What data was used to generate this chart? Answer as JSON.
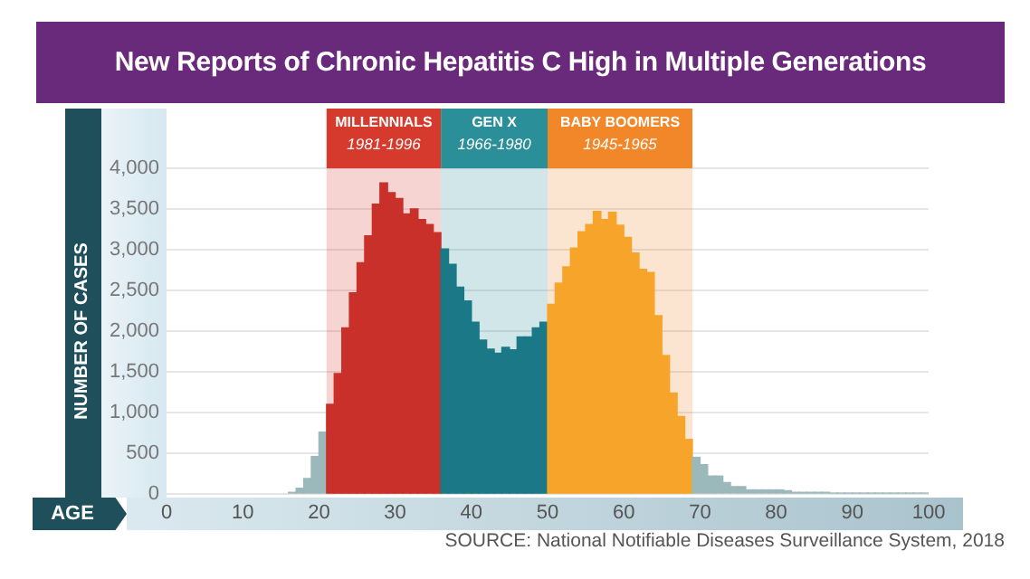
{
  "chart_data": {
    "type": "histogram",
    "title": "New Reports of Chronic Hepatitis C High in Multiple Generations",
    "xlabel": "AGE",
    "ylabel": "NUMBER OF CASES",
    "bins": [
      16,
      17,
      18,
      19,
      20,
      21,
      22,
      23,
      24,
      25,
      26,
      27,
      28,
      29,
      30,
      31,
      32,
      33,
      34,
      35,
      36,
      37,
      38,
      39,
      40,
      41,
      42,
      43,
      44,
      45,
      46,
      47,
      48,
      49,
      50,
      51,
      52,
      53,
      54,
      55,
      56,
      57,
      58,
      59,
      60,
      61,
      62,
      63,
      64,
      65,
      66,
      67,
      68,
      69,
      70,
      71,
      72,
      73,
      74,
      75,
      76,
      77,
      78,
      79,
      80,
      81,
      82,
      83,
      84,
      85,
      86,
      87,
      88,
      89,
      90,
      91,
      92,
      93,
      94,
      95,
      96,
      97,
      98,
      99,
      100
    ],
    "values": [
      20,
      70,
      190,
      460,
      760,
      1100,
      1480,
      2040,
      2470,
      2840,
      3170,
      3560,
      3820,
      3700,
      3630,
      3440,
      3500,
      3370,
      3310,
      3210,
      3010,
      2820,
      2540,
      2370,
      2110,
      1890,
      1780,
      1730,
      1800,
      1770,
      1930,
      1930,
      2040,
      2110,
      2330,
      2590,
      2790,
      3020,
      3220,
      3310,
      3470,
      3370,
      3460,
      3300,
      3150,
      2960,
      2760,
      2720,
      2190,
      1700,
      1240,
      950,
      670,
      450,
      360,
      220,
      220,
      140,
      90,
      90,
      50,
      50,
      50,
      50,
      50,
      40,
      20,
      20,
      20,
      20,
      20,
      10,
      10,
      10,
      10,
      10,
      10,
      10,
      10,
      10,
      10,
      10,
      10,
      10
    ],
    "colors": [
      "#9bb8ba",
      "#9bb8ba",
      "#9bb8ba",
      "#9bb8ba",
      "#9bb8ba",
      "#c9302a",
      "#c9302a",
      "#c9302a",
      "#c9302a",
      "#c9302a",
      "#c9302a",
      "#c9302a",
      "#c9302a",
      "#c9302a",
      "#c9302a",
      "#c9302a",
      "#c9302a",
      "#c9302a",
      "#c9302a",
      "#c9302a",
      "#1b7886",
      "#1b7886",
      "#1b7886",
      "#1b7886",
      "#1b7886",
      "#1b7886",
      "#1b7886",
      "#1b7886",
      "#1b7886",
      "#1b7886",
      "#1b7886",
      "#1b7886",
      "#1b7886",
      "#1b7886",
      "#f7a52a",
      "#f7a52a",
      "#f7a52a",
      "#f7a52a",
      "#f7a52a",
      "#f7a52a",
      "#f7a52a",
      "#f7a52a",
      "#f7a52a",
      "#f7a52a",
      "#f7a52a",
      "#f7a52a",
      "#f7a52a",
      "#f7a52a",
      "#f7a52a",
      "#f7a52a",
      "#f7a52a",
      "#f7a52a",
      "#f7a52a",
      "#9bb8ba",
      "#9bb8ba",
      "#9bb8ba",
      "#9bb8ba",
      "#9bb8ba",
      "#9bb8ba",
      "#9bb8ba",
      "#9bb8ba",
      "#9bb8ba",
      "#9bb8ba",
      "#9bb8ba",
      "#9bb8ba",
      "#9bb8ba",
      "#9bb8ba",
      "#9bb8ba",
      "#9bb8ba",
      "#9bb8ba",
      "#9bb8ba",
      "#9bb8ba",
      "#9bb8ba",
      "#9bb8ba",
      "#9bb8ba",
      "#9bb8ba",
      "#9bb8ba",
      "#9bb8ba",
      "#9bb8ba",
      "#9bb8ba",
      "#9bb8ba",
      "#9bb8ba",
      "#9bb8ba",
      "#9bb8ba"
    ],
    "bands": [
      {
        "axis": "x",
        "from": 21,
        "to": 36,
        "label": "MILLENNIALS\n1981-1996",
        "color": "#d63a2c"
      },
      {
        "axis": "x",
        "from": 36,
        "to": 50,
        "label": "GEN X\n1966-1980",
        "color": "#2a8f98"
      },
      {
        "axis": "x",
        "from": 50,
        "to": 69,
        "label": "BABY BOOMERS\n1945-1965",
        "color": "#f2872a"
      }
    ],
    "xlim": [
      0,
      100
    ],
    "xticks": [
      0,
      10,
      20,
      30,
      40,
      50,
      60,
      70,
      80,
      90,
      100
    ],
    "ylim": [
      0,
      4000
    ],
    "yticks": [
      0,
      500,
      {
        "value": 1000,
        "label": "1,000"
      },
      {
        "value": 1500,
        "label": "1,500"
      },
      {
        "value": 2000,
        "label": "2,000"
      },
      {
        "value": 2500,
        "label": "2,500"
      },
      {
        "value": 3000,
        "label": "3,000"
      },
      {
        "value": 3500,
        "label": "3,500"
      },
      {
        "value": 4000,
        "label": "4,000"
      }
    ],
    "grid": "y",
    "legend": false,
    "annotations": [
      "SOURCE: National Notifiable Diseases Surveillance System, 2018"
    ]
  }
}
